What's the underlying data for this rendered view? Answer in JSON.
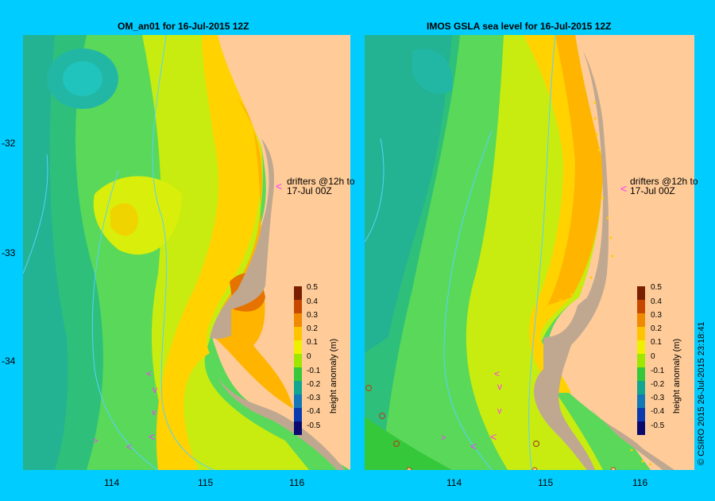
{
  "panels": [
    {
      "title": "OM_an01  for 16-Jul-2015 12Z",
      "drifter_note_line1": "drifters @12h to",
      "drifter_note_line2": "17-Jul 00Z"
    },
    {
      "title": "IMOS GSLA sea level  for 16-Jul-2015 12Z",
      "drifter_note_line1": "drifters @12h to",
      "drifter_note_line2": "17-Jul 00Z"
    }
  ],
  "latitude_labels": [
    "-32",
    "-33",
    "-34"
  ],
  "longitude_labels": [
    "114",
    "115",
    "116"
  ],
  "colorbar": {
    "title": "height anomaly (m)",
    "ticks": [
      "0.5",
      "0.4",
      "0.3",
      "0.2",
      "0.1",
      "0",
      "-0.1",
      "-0.2",
      "-0.3",
      "-0.4",
      "-0.5"
    ],
    "colors": [
      "#7a1f00",
      "#c64800",
      "#f08a00",
      "#ffc400",
      "#eef000",
      "#9fe600",
      "#36c83b",
      "#11a68f",
      "#1378b8",
      "#0a3ab0",
      "#0a0a6e"
    ]
  },
  "credit": "© CSIRO 2015    26-Jul-2015 23:18:41",
  "colors": {
    "background": "#00ccff",
    "land": "#ffcc99",
    "shelf": "#c0a890",
    "drifter": "#ff33ff"
  }
}
